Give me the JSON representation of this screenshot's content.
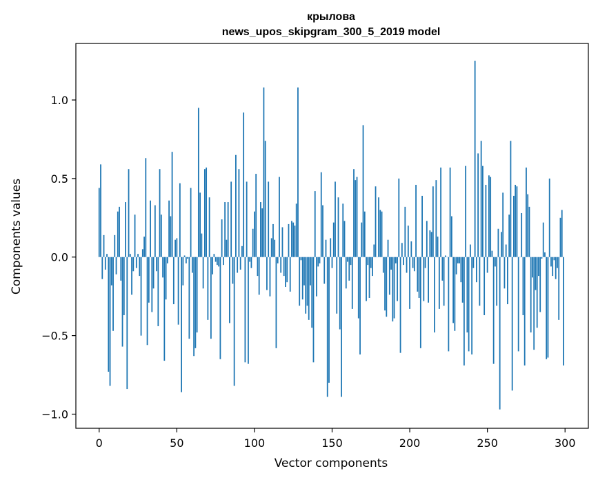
{
  "chart_data": {
    "type": "bar",
    "title": "крылова",
    "subtitle": "news_upos_skipgram_300_5_2019 model",
    "xlabel": "Vector components",
    "ylabel": "Components values",
    "xlim": [
      -15,
      315
    ],
    "ylim": [
      -1.09,
      1.36
    ],
    "xticks": [
      0,
      50,
      100,
      150,
      200,
      250,
      300
    ],
    "yticks": [
      -1.0,
      -0.5,
      0.0,
      0.5,
      1.0
    ],
    "xtick_labels": [
      "0",
      "50",
      "100",
      "150",
      "200",
      "250",
      "300"
    ],
    "ytick_labels": [
      "−1.0",
      "−0.5",
      "0.0",
      "0.5",
      "1.0"
    ],
    "color": "#1f77b4",
    "grid": false,
    "x": [
      0,
      1,
      2,
      3,
      4,
      5,
      6,
      7,
      8,
      9,
      10,
      11,
      12,
      13,
      14,
      15,
      16,
      17,
      18,
      19,
      20,
      21,
      22,
      23,
      24,
      25,
      26,
      27,
      28,
      29,
      30,
      31,
      32,
      33,
      34,
      35,
      36,
      37,
      38,
      39,
      40,
      41,
      42,
      43,
      44,
      45,
      46,
      47,
      48,
      49,
      50,
      51,
      52,
      53,
      54,
      55,
      56,
      57,
      58,
      59,
      60,
      61,
      62,
      63,
      64,
      65,
      66,
      67,
      68,
      69,
      70,
      71,
      72,
      73,
      74,
      75,
      76,
      77,
      78,
      79,
      80,
      81,
      82,
      83,
      84,
      85,
      86,
      87,
      88,
      89,
      90,
      91,
      92,
      93,
      94,
      95,
      96,
      97,
      98,
      99,
      100,
      101,
      102,
      103,
      104,
      105,
      106,
      107,
      108,
      109,
      110,
      111,
      112,
      113,
      114,
      115,
      116,
      117,
      118,
      119,
      120,
      121,
      122,
      123,
      124,
      125,
      126,
      127,
      128,
      129,
      130,
      131,
      132,
      133,
      134,
      135,
      136,
      137,
      138,
      139,
      140,
      141,
      142,
      143,
      144,
      145,
      146,
      147,
      148,
      149,
      150,
      151,
      152,
      153,
      154,
      155,
      156,
      157,
      158,
      159,
      160,
      161,
      162,
      163,
      164,
      165,
      166,
      167,
      168,
      169,
      170,
      171,
      172,
      173,
      174,
      175,
      176,
      177,
      178,
      179,
      180,
      181,
      182,
      183,
      184,
      185,
      186,
      187,
      188,
      189,
      190,
      191,
      192,
      193,
      194,
      195,
      196,
      197,
      198,
      199,
      200,
      201,
      202,
      203,
      204,
      205,
      206,
      207,
      208,
      209,
      210,
      211,
      212,
      213,
      214,
      215,
      216,
      217,
      218,
      219,
      220,
      221,
      222,
      223,
      224,
      225,
      226,
      227,
      228,
      229,
      230,
      231,
      232,
      233,
      234,
      235,
      236,
      237,
      238,
      239,
      240,
      241,
      242,
      243,
      244,
      245,
      246,
      247,
      248,
      249,
      250,
      251,
      252,
      253,
      254,
      255,
      256,
      257,
      258,
      259,
      260,
      261,
      262,
      263,
      264,
      265,
      266,
      267,
      268,
      269,
      270,
      271,
      272,
      273,
      274,
      275,
      276,
      277,
      278,
      279,
      280,
      281,
      282,
      283,
      284,
      285,
      286,
      287,
      288,
      289,
      290,
      291,
      292,
      293,
      294,
      295,
      296,
      297,
      298,
      299
    ],
    "values": [
      0.44,
      0.59,
      -0.14,
      0.14,
      -0.08,
      0.02,
      -0.73,
      -0.82,
      -0.18,
      -0.47,
      0.14,
      -0.11,
      0.29,
      0.32,
      -0.15,
      -0.57,
      -0.37,
      0.35,
      -0.84,
      0.56,
      0.02,
      -0.24,
      -0.09,
      0.27,
      -0.07,
      0.02,
      -0.12,
      -0.5,
      0.05,
      0.13,
      0.63,
      -0.56,
      -0.29,
      0.36,
      -0.35,
      -0.2,
      0.33,
      -0.09,
      -0.44,
      0.56,
      0.27,
      -0.13,
      -0.66,
      -0.27,
      -0.04,
      0.36,
      0.26,
      0.67,
      -0.3,
      0.11,
      0.12,
      -0.43,
      0.47,
      -0.86,
      -0.18,
      0.01,
      -0.04,
      -0.01,
      -0.52,
      0.44,
      -0.1,
      -0.63,
      -0.58,
      -0.48,
      0.95,
      0.41,
      0.15,
      -0.2,
      0.56,
      0.57,
      -0.4,
      0.38,
      -0.52,
      -0.11,
      0.02,
      -0.03,
      -0.05,
      -0.06,
      -0.65,
      0.24,
      -0.05,
      0.35,
      0.11,
      0.35,
      -0.42,
      0.48,
      -0.17,
      -0.82,
      0.65,
      -0.1,
      0.56,
      -0.08,
      0.07,
      0.92,
      -0.67,
      0.48,
      -0.68,
      -0.03,
      -0.07,
      0.18,
      0.29,
      0.53,
      -0.12,
      -0.24,
      0.35,
      0.31,
      1.08,
      0.74,
      -0.21,
      0.48,
      -0.25,
      0.12,
      0.21,
      0.11,
      -0.58,
      -0.04,
      0.51,
      -0.1,
      0.19,
      -0.12,
      -0.19,
      -0.16,
      0.21,
      -0.22,
      0.23,
      0.22,
      0.2,
      0.34,
      1.08,
      -0.31,
      -0.02,
      -0.27,
      -0.18,
      -0.36,
      -0.31,
      -0.4,
      -0.18,
      -0.45,
      -0.67,
      0.42,
      -0.25,
      -0.06,
      -0.04,
      0.54,
      0.33,
      -0.17,
      0.11,
      -0.89,
      -0.8,
      0.12,
      -0.07,
      0.22,
      0.48,
      -0.36,
      0.38,
      -0.46,
      -0.89,
      0.34,
      0.23,
      -0.2,
      -0.03,
      -0.15,
      -0.05,
      -0.33,
      0.56,
      0.49,
      0.51,
      -0.39,
      -0.62,
      0.22,
      0.84,
      0.29,
      -0.28,
      -0.05,
      -0.26,
      -0.07,
      -0.12,
      0.08,
      0.45,
      0.0,
      0.38,
      0.3,
      0.29,
      -0.1,
      -0.34,
      -0.38,
      0.11,
      -0.24,
      -0.08,
      -0.41,
      -0.39,
      -0.04,
      -0.28,
      0.5,
      -0.61,
      0.09,
      -0.05,
      0.32,
      -0.1,
      0.2,
      -0.33,
      0.1,
      -0.07,
      -0.09,
      0.46,
      -0.22,
      -0.26,
      -0.58,
      0.39,
      -0.28,
      -0.07,
      0.23,
      -0.29,
      0.17,
      0.16,
      0.45,
      -0.48,
      0.49,
      0.13,
      -0.33,
      0.57,
      -0.15,
      -0.31,
      0.01,
      0.0,
      -0.6,
      0.57,
      0.26,
      -0.42,
      -0.47,
      -0.11,
      -0.04,
      -0.04,
      -0.16,
      -0.29,
      -0.69,
      0.58,
      -0.48,
      -0.6,
      0.08,
      -0.62,
      -0.07,
      1.25,
      -0.16,
      0.66,
      -0.31,
      0.74,
      0.58,
      -0.37,
      0.46,
      -0.1,
      0.52,
      0.51,
      0.04,
      -0.68,
      -0.06,
      -0.31,
      0.18,
      -0.97,
      0.16,
      0.41,
      -0.2,
      0.08,
      -0.3,
      0.27,
      0.74,
      -0.85,
      0.39,
      0.46,
      0.45,
      -0.6,
      0.0,
      0.28,
      -0.37,
      -0.69,
      0.57,
      0.4,
      0.32,
      -0.48,
      -0.13,
      -0.59,
      -0.21,
      -0.45,
      -0.12,
      -0.35,
      -0.01,
      0.22,
      0.03,
      -0.65,
      -0.64,
      0.5,
      -0.06,
      -0.12,
      -0.02,
      -0.14,
      -0.07,
      -0.4,
      0.25,
      0.3,
      -0.69
    ]
  }
}
